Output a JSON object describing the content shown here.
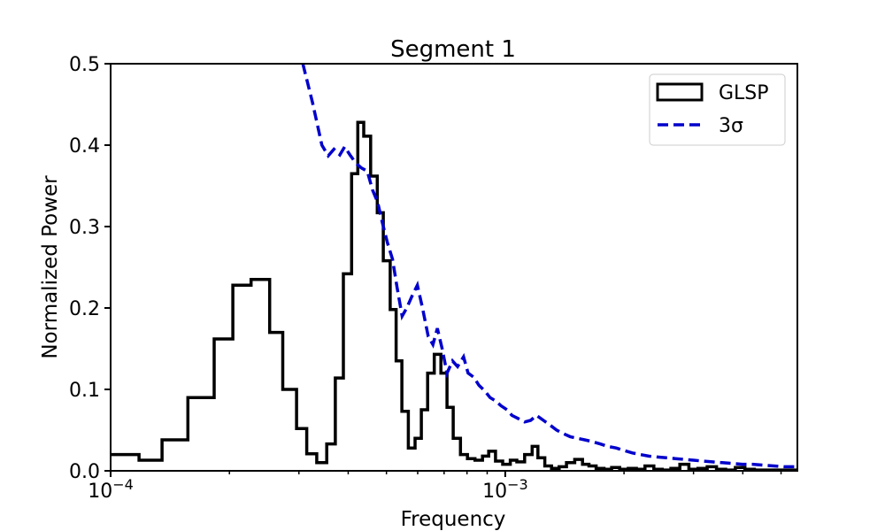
{
  "chart_data": {
    "type": "line",
    "title": "Segment 1",
    "xlabel": "Frequency",
    "ylabel": "Normalized Power",
    "xscale": "log",
    "xlim": [
      0.0001,
      0.0055
    ],
    "ylim": [
      0,
      0.5
    ],
    "grid": false,
    "legend_position": "top-right",
    "x_ticks": [
      {
        "value": 0.0001,
        "base": "10",
        "exp": "−4"
      },
      {
        "value": 0.001,
        "base": "10",
        "exp": "−3"
      }
    ],
    "y_ticks": [
      "0.0",
      "0.1",
      "0.2",
      "0.3",
      "0.4",
      "0.5"
    ],
    "series": [
      {
        "name": "GLSP",
        "style": "steps",
        "color": "#000000",
        "x": [
          0.0001,
          0.000118,
          0.000135,
          0.000157,
          0.000183,
          0.000204,
          0.000227,
          0.000253,
          0.000273,
          0.000296,
          0.000314,
          0.000333,
          0.000353,
          0.000371,
          0.000389,
          0.000408,
          0.000423,
          0.000438,
          0.000456,
          0.000474,
          0.000491,
          0.000511,
          0.000529,
          0.000547,
          0.000568,
          0.000591,
          0.000613,
          0.000636,
          0.000661,
          0.000687,
          0.000712,
          0.000738,
          0.00077,
          0.000802,
          0.000838,
          0.000876,
          0.000908,
          0.000945,
          0.000985,
          0.00103,
          0.00107,
          0.00112,
          0.00117,
          0.00121,
          0.00126,
          0.00131,
          0.00137,
          0.00143,
          0.0015,
          0.00157,
          0.00163,
          0.0017,
          0.00178,
          0.00186,
          0.00195,
          0.00205,
          0.00215,
          0.00226,
          0.00238,
          0.0025,
          0.00263,
          0.00277,
          0.00292,
          0.00308,
          0.00325,
          0.00343,
          0.00362,
          0.00383,
          0.00405,
          0.00428,
          0.00453,
          0.0048,
          0.0051
        ],
        "y": [
          0.02,
          0.013,
          0.038,
          0.09,
          0.162,
          0.228,
          0.235,
          0.17,
          0.1,
          0.052,
          0.021,
          0.01,
          0.033,
          0.114,
          0.242,
          0.365,
          0.428,
          0.411,
          0.362,
          0.317,
          0.258,
          0.198,
          0.135,
          0.073,
          0.028,
          0.04,
          0.075,
          0.12,
          0.143,
          0.12,
          0.078,
          0.04,
          0.02,
          0.015,
          0.013,
          0.018,
          0.024,
          0.012,
          0.008,
          0.013,
          0.011,
          0.02,
          0.03,
          0.016,
          0.006,
          0.003,
          0.005,
          0.01,
          0.014,
          0.008,
          0.006,
          0.003,
          0.002,
          0.004,
          0.002,
          0.003,
          0.002,
          0.006,
          0.002,
          0.001,
          0.003,
          0.008,
          0.002,
          0.003,
          0.005,
          0.002,
          0.001,
          0.004,
          0.002,
          0.001,
          0.001,
          0.001,
          0.001
        ]
      },
      {
        "name": "3σ",
        "style": "dashed",
        "color": "#0000cc",
        "x": [
          0.000307,
          0.000325,
          0.000343,
          0.000356,
          0.000368,
          0.000381,
          0.000392,
          0.000404,
          0.000418,
          0.000432,
          0.000447,
          0.000461,
          0.000475,
          0.000488,
          0.000503,
          0.000518,
          0.000532,
          0.000548,
          0.000563,
          0.000581,
          0.000599,
          0.000617,
          0.000638,
          0.000656,
          0.000673,
          0.000692,
          0.000712,
          0.000735,
          0.000757,
          0.000784,
          0.000805,
          0.000832,
          0.000858,
          0.000888,
          0.000915,
          0.000945,
          0.000975,
          0.00101,
          0.00104,
          0.00108,
          0.00112,
          0.00116,
          0.0012,
          0.00125,
          0.0013,
          0.00135,
          0.0014,
          0.00146,
          0.00152,
          0.00159,
          0.00166,
          0.00174,
          0.00182,
          0.00191,
          0.002,
          0.0021,
          0.0022,
          0.00231,
          0.00243,
          0.00256,
          0.0027,
          0.00285,
          0.003,
          0.00317,
          0.00335,
          0.00355,
          0.00376,
          0.00399,
          0.00424,
          0.0045,
          0.0048,
          0.0051,
          0.0055
        ],
        "y": [
          0.5,
          0.452,
          0.4,
          0.387,
          0.395,
          0.388,
          0.398,
          0.388,
          0.378,
          0.372,
          0.368,
          0.345,
          0.33,
          0.305,
          0.28,
          0.26,
          0.225,
          0.19,
          0.2,
          0.215,
          0.228,
          0.2,
          0.165,
          0.155,
          0.175,
          0.15,
          0.12,
          0.135,
          0.128,
          0.14,
          0.12,
          0.115,
          0.105,
          0.098,
          0.09,
          0.086,
          0.08,
          0.075,
          0.068,
          0.064,
          0.06,
          0.062,
          0.068,
          0.062,
          0.056,
          0.05,
          0.046,
          0.042,
          0.04,
          0.038,
          0.036,
          0.033,
          0.03,
          0.028,
          0.025,
          0.022,
          0.02,
          0.018,
          0.017,
          0.016,
          0.015,
          0.014,
          0.013,
          0.012,
          0.011,
          0.01,
          0.009,
          0.008,
          0.008,
          0.007,
          0.006,
          0.005,
          0.005
        ]
      }
    ]
  }
}
